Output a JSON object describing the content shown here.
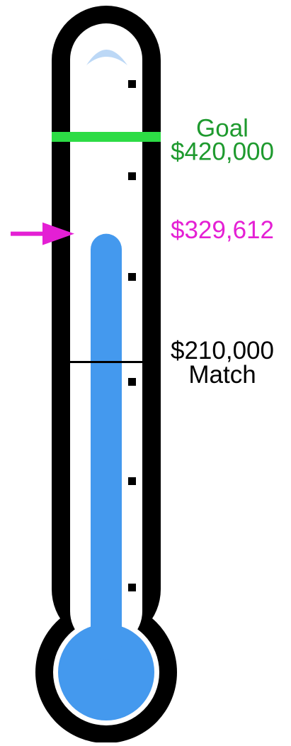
{
  "chart_data": {
    "type": "thermometer",
    "ylim": [
      0,
      420000
    ],
    "goal": {
      "label": "Goal",
      "value": 420000,
      "value_label": "$420,000",
      "color": "#2ddc45",
      "label_color": "#1e9a2e"
    },
    "current": {
      "value": 329612,
      "value_label": "$329,612",
      "color": "#4499ee",
      "label_color": "#e41fd4"
    },
    "match": {
      "label": "Match",
      "value": 210000,
      "value_label": "$210,000",
      "color": "#000000"
    }
  }
}
